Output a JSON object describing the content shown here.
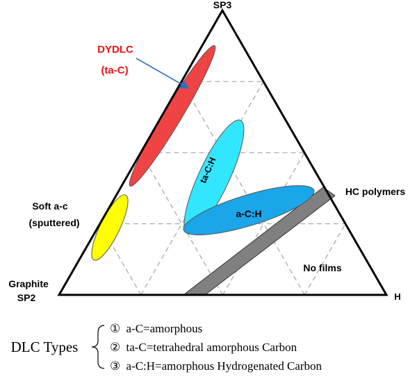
{
  "corners": {
    "top": "SP3",
    "bottom_left_line1": "Graphite",
    "bottom_left_line2": "SP2",
    "bottom_right": "H"
  },
  "regions": {
    "dydlc_line1": "DYDLC",
    "dydlc_line2": "(ta-C)",
    "soft_line1": "Soft  a-c",
    "soft_line2": "(sputtered)",
    "tac_h": "ta-C:H",
    "ac_h": "a-C:H",
    "hc_polymers": "HC  polymers",
    "no_films": "No  films"
  },
  "legend": {
    "title": "DLC Types",
    "items": [
      {
        "num": "①",
        "text": "a-C=amorphous"
      },
      {
        "num": "②",
        "text": "ta-C=tetrahedral amorphous Carbon"
      },
      {
        "num": "③",
        "text": "a-C:H=amorphous Hydrogenated  Carbon"
      }
    ]
  },
  "colors": {
    "dydlc_fill": "#f04444",
    "soft_fill": "#ffff00",
    "tac_h_fill": "#33e6ff",
    "ac_h_fill": "#1aa6e8",
    "band_fill": "#808080",
    "dydlc_label": "#ee1111",
    "arrow": "#2f6fbf",
    "grid": "#aaaaaa"
  }
}
